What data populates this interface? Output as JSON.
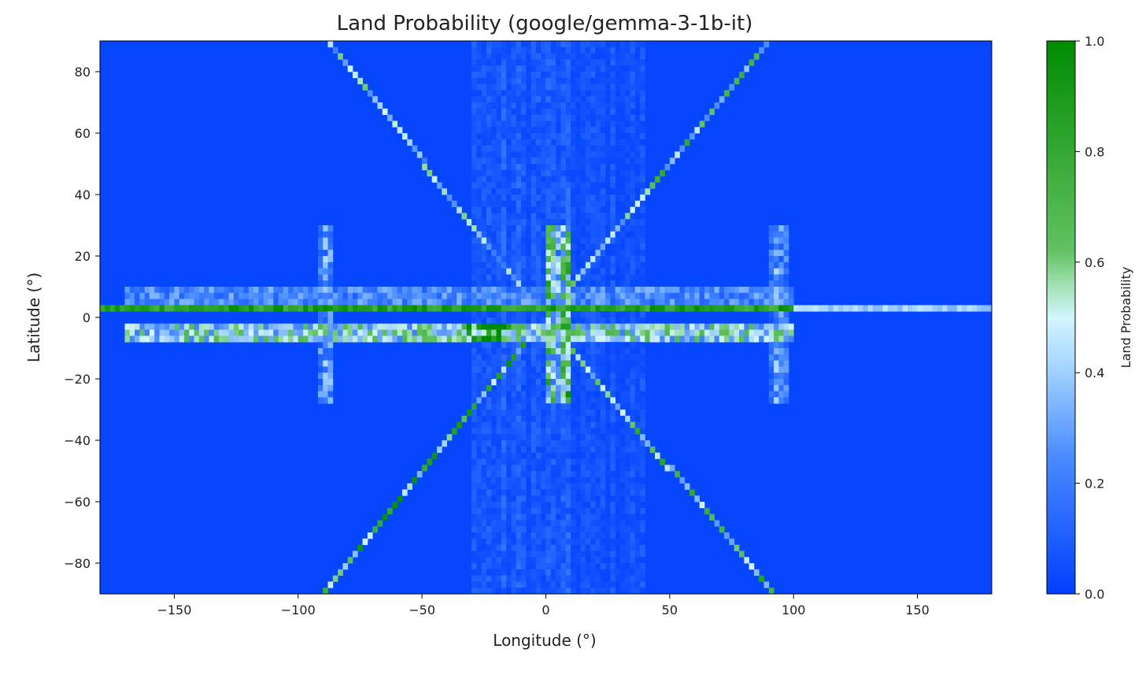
{
  "chart_data": {
    "type": "heatmap",
    "title": "Land Probability (google/gemma-3-1b-it)",
    "xlabel": "Longitude (°)",
    "ylabel": "Latitude (°)",
    "xlim": [
      -180,
      180
    ],
    "ylim": [
      -90,
      90
    ],
    "xticks": [
      -150,
      -100,
      -50,
      0,
      50,
      100,
      150
    ],
    "xtick_labels": [
      "−150",
      "−100",
      "−50",
      "0",
      "50",
      "100",
      "150"
    ],
    "yticks": [
      -80,
      -60,
      -40,
      -20,
      0,
      20,
      40,
      60,
      80
    ],
    "ytick_labels": [
      "−80",
      "−60",
      "−40",
      "−20",
      "0",
      "20",
      "40",
      "60",
      "80"
    ],
    "grid": false,
    "cell_size_deg": 2,
    "background_value": 0.02,
    "colorbar": {
      "label": "Land Probability",
      "range": [
        0,
        1
      ],
      "ticks": [
        0.0,
        0.2,
        0.4,
        0.6,
        0.8,
        1.0
      ],
      "tick_labels": [
        "0.0",
        "0.2",
        "0.4",
        "0.6",
        "0.8",
        "1.0"
      ],
      "position": "right",
      "colormap": [
        {
          "v": 0.0,
          "c": "#0040ff"
        },
        {
          "v": 0.25,
          "c": "#4a8cff"
        },
        {
          "v": 0.4,
          "c": "#9fd0ff"
        },
        {
          "v": 0.5,
          "c": "#d2f6ff"
        },
        {
          "v": 0.56,
          "c": "#9fe0b0"
        },
        {
          "v": 0.62,
          "c": "#62c262"
        },
        {
          "v": 1.0,
          "c": "#008c00"
        }
      ]
    },
    "features": [
      {
        "kind": "row",
        "lat": 3,
        "lon": [
          -180,
          100
        ],
        "value": 0.9
      },
      {
        "kind": "row",
        "lat": 3,
        "lon": [
          100,
          180
        ],
        "value": 0.42
      },
      {
        "kind": "band",
        "lat": [
          -8,
          -2
        ],
        "lon": [
          -170,
          100
        ],
        "value": 0.5
      },
      {
        "kind": "band",
        "lat": [
          -8,
          -2
        ],
        "lon": [
          -34,
          -14
        ],
        "value": 0.95
      },
      {
        "kind": "band",
        "lat": [
          4,
          10
        ],
        "lon": [
          -170,
          100
        ],
        "value": 0.25
      },
      {
        "kind": "diagonal",
        "from": [
          -10,
          10
        ],
        "to": [
          -88,
          90
        ],
        "value": 0.45
      },
      {
        "kind": "diagonal",
        "from": [
          10,
          10
        ],
        "to": [
          90,
          90
        ],
        "value": 0.6
      },
      {
        "kind": "diagonal",
        "from": [
          -10,
          -10
        ],
        "to": [
          -88,
          -88
        ],
        "value": 0.7
      },
      {
        "kind": "diagonal",
        "from": [
          10,
          -10
        ],
        "to": [
          90,
          -88
        ],
        "value": 0.6
      },
      {
        "kind": "column",
        "lon": [
          0,
          10
        ],
        "lat": [
          -28,
          30
        ],
        "value": 0.45
      },
      {
        "kind": "column",
        "lon": [
          -92,
          -86
        ],
        "lat": [
          -28,
          30
        ],
        "value": 0.22
      },
      {
        "kind": "column",
        "lon": [
          90,
          98
        ],
        "lat": [
          -28,
          30
        ],
        "value": 0.25
      },
      {
        "kind": "column",
        "lon": [
          -30,
          10
        ],
        "lat": [
          -90,
          90
        ],
        "value": 0.08
      },
      {
        "kind": "column",
        "lon": [
          10,
          40
        ],
        "lat": [
          -90,
          90
        ],
        "value": 0.06
      }
    ]
  }
}
